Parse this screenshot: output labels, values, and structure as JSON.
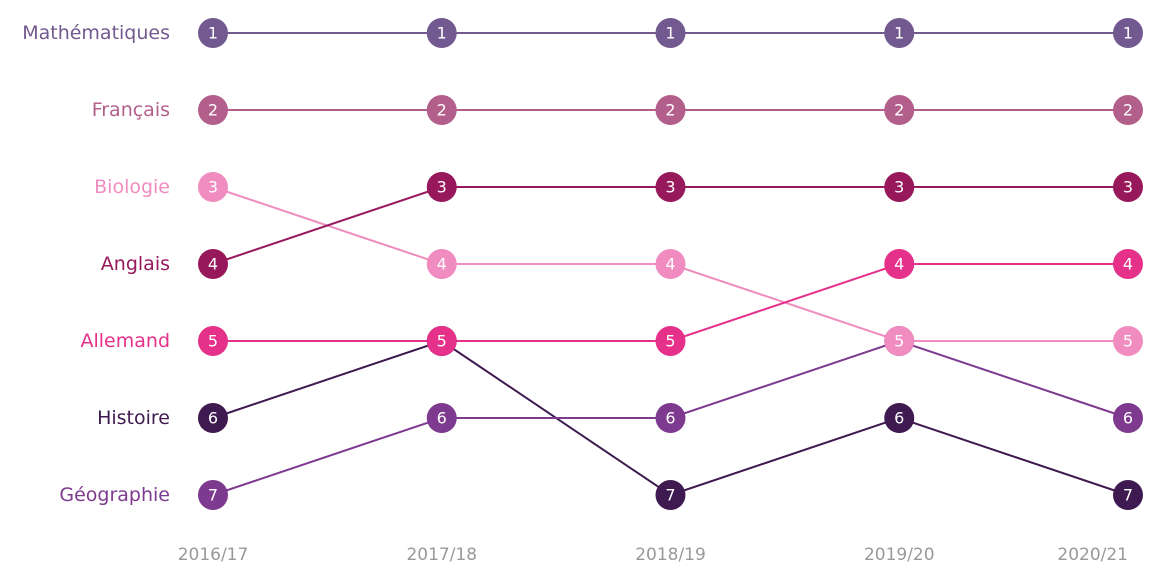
{
  "chart_data": {
    "type": "bump",
    "categories": [
      "2016/17",
      "2017/18",
      "2018/19",
      "2019/20",
      "2020/21"
    ],
    "ylim": [
      1,
      7
    ],
    "y_inverted": true,
    "series": [
      {
        "name": "Mathématiques",
        "color": "#72598f",
        "values": [
          1,
          1,
          1,
          1,
          1
        ]
      },
      {
        "name": "Français",
        "color": "#b35f8b",
        "values": [
          2,
          2,
          2,
          2,
          2
        ]
      },
      {
        "name": "Biologie",
        "color": "#f08cbf",
        "values": [
          3,
          4,
          4,
          5,
          5
        ]
      },
      {
        "name": "Anglais",
        "color": "#97185b",
        "values": [
          4,
          3,
          3,
          3,
          3
        ]
      },
      {
        "name": "Allemand",
        "color": "#e6318a",
        "values": [
          5,
          5,
          5,
          4,
          4
        ]
      },
      {
        "name": "Histoire",
        "color": "#3e1a50",
        "values": [
          6,
          5,
          7,
          6,
          7
        ]
      },
      {
        "name": "Géographie",
        "color": "#7d3a8f",
        "values": [
          7,
          6,
          6,
          5,
          6
        ]
      }
    ]
  }
}
